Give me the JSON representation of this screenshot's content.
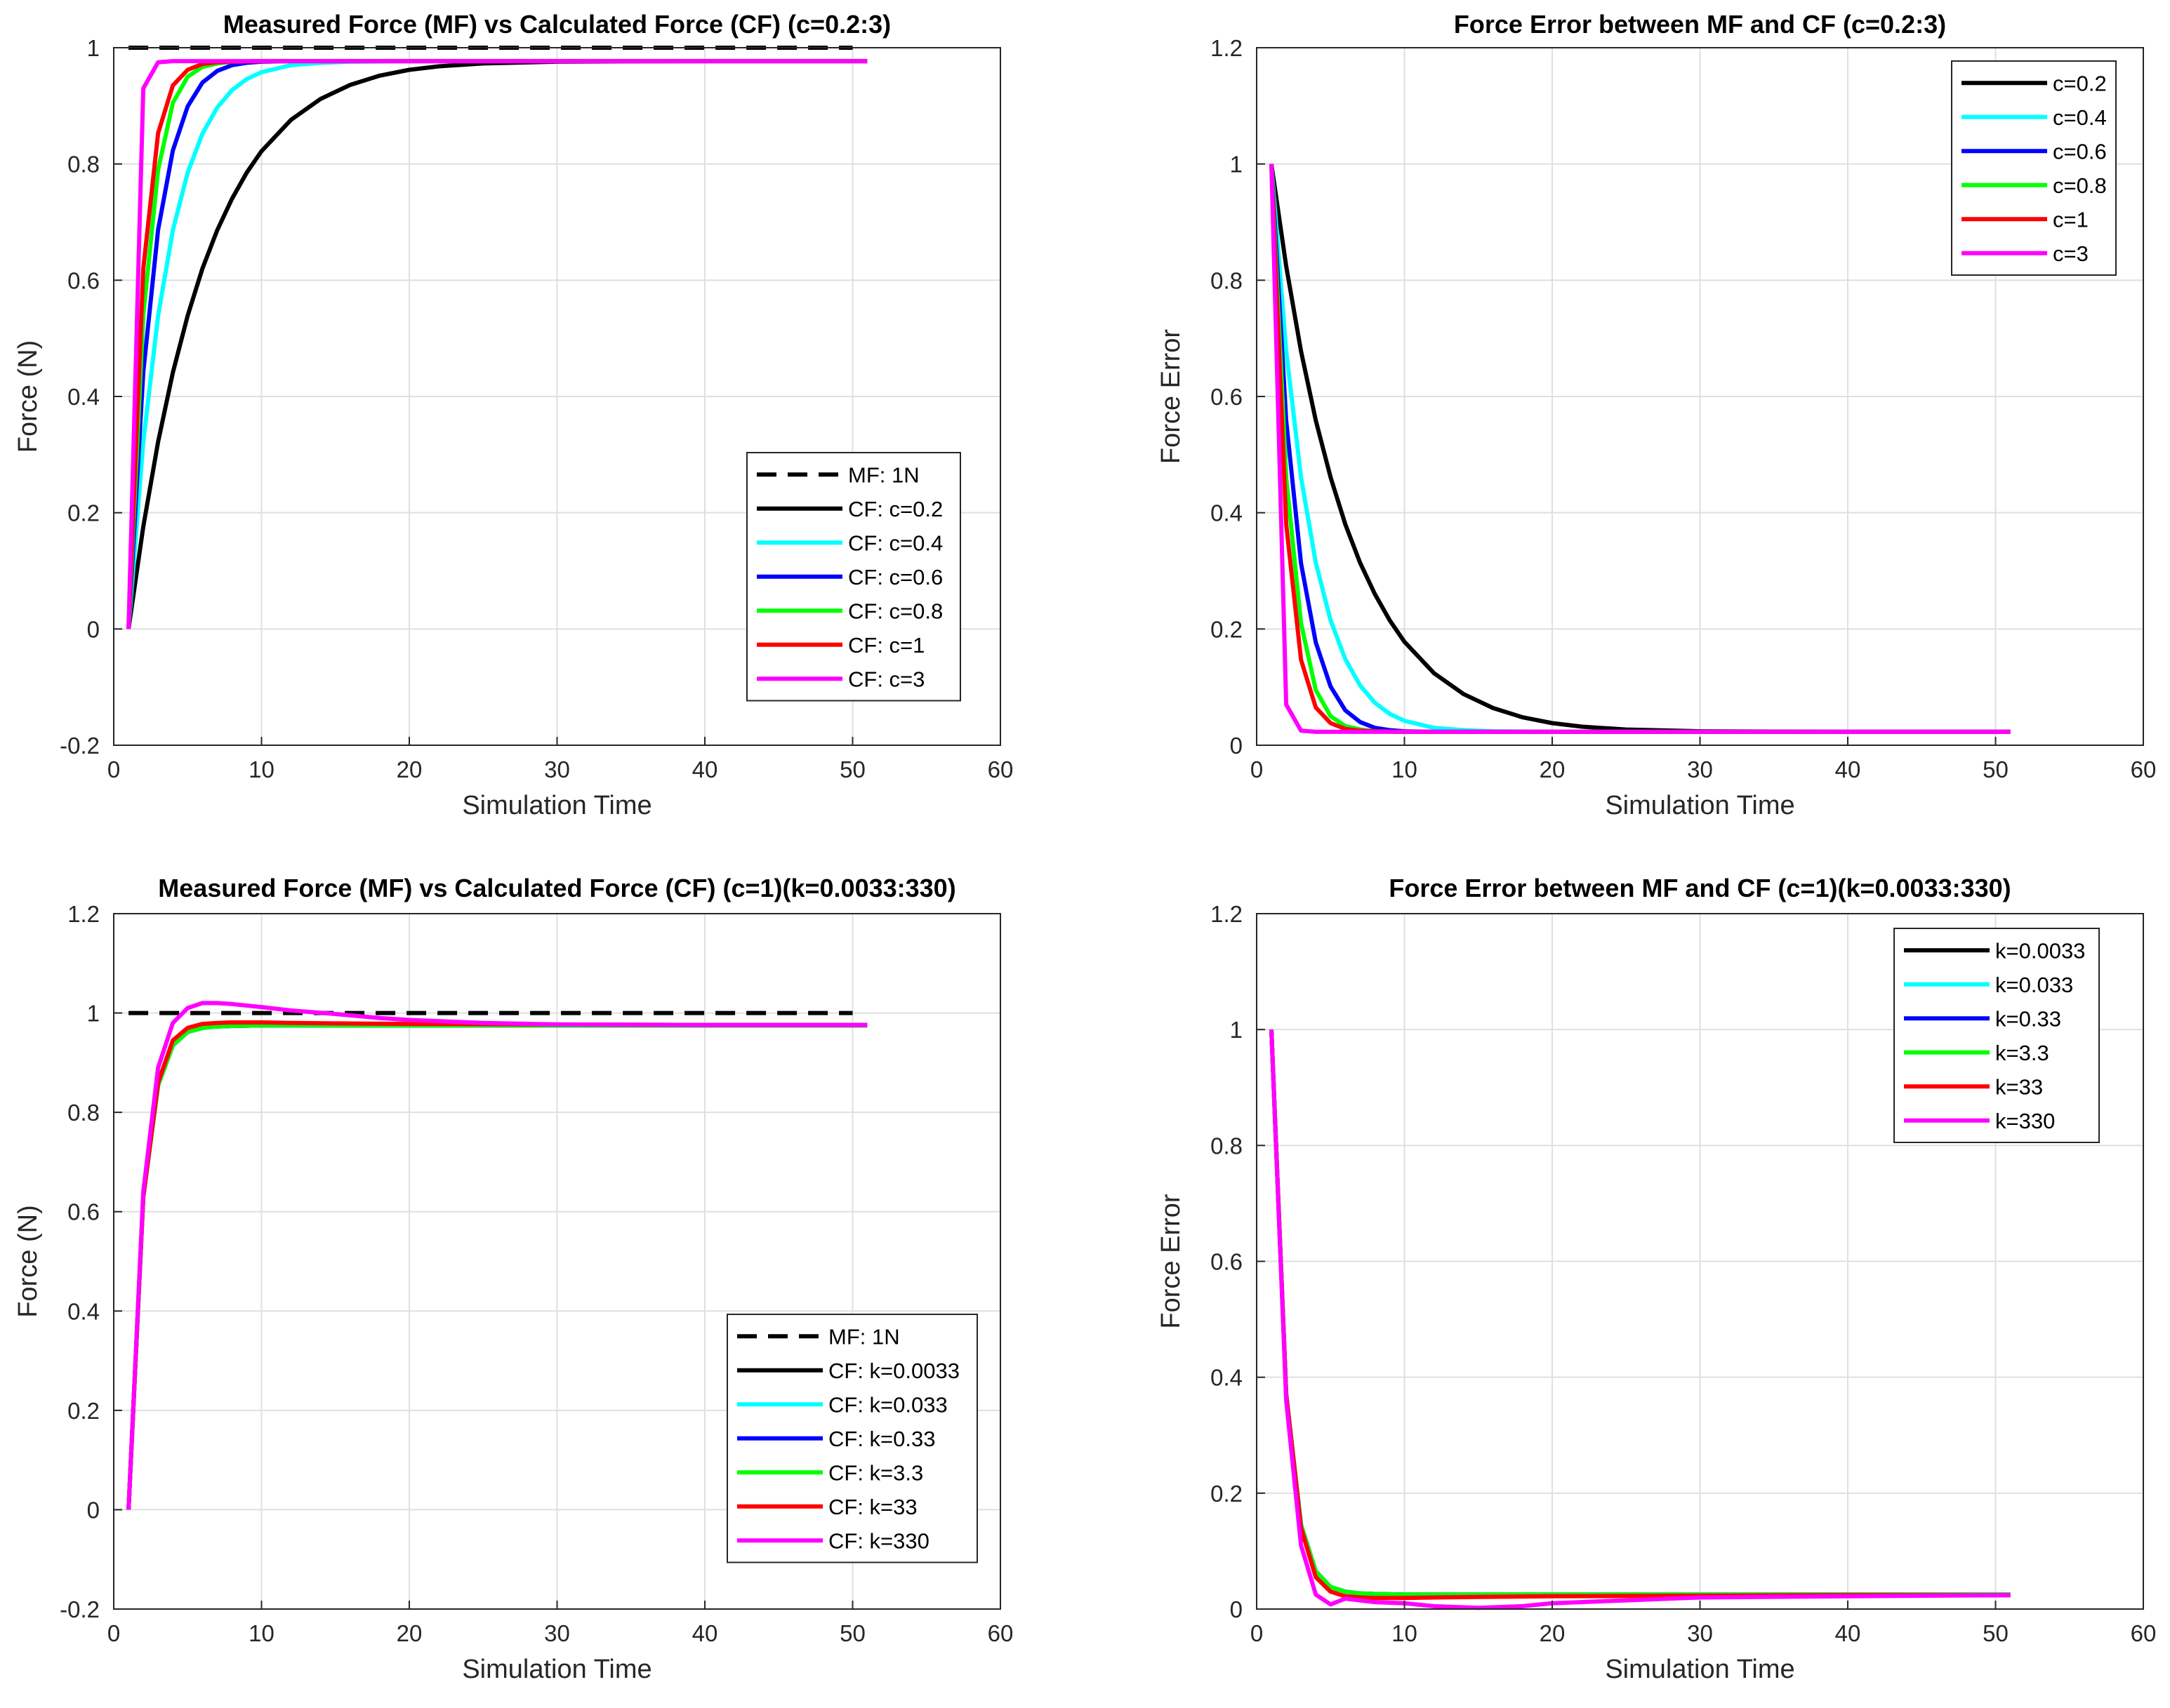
{
  "chart_data": [
    {
      "type": "line",
      "title": "Measured Force (MF) vs Calculated Force (CF) (c=0.2:3)",
      "xlabel": "Simulation Time",
      "ylabel": "Force (N)",
      "xlim": [
        0,
        60
      ],
      "ylim": [
        -0.2,
        1
      ],
      "xticks": [
        0,
        10,
        20,
        30,
        40,
        50,
        60
      ],
      "yticks": [
        -0.2,
        0,
        0.2,
        0.4,
        0.6,
        0.8,
        1
      ],
      "grid": true,
      "legend_position": "middle-right",
      "series": [
        {
          "name": "MF: 1N",
          "color": "#000000",
          "dashed": true,
          "x": [
            1,
            50
          ],
          "y": [
            1,
            1
          ]
        },
        {
          "name": "CF: c=0.2",
          "color": "#000000",
          "x": [
            1,
            2,
            3,
            4,
            5,
            6,
            7,
            8,
            9,
            10,
            12,
            14,
            16,
            18,
            20,
            22,
            25,
            30,
            35,
            40,
            45,
            51
          ],
          "y": [
            0,
            0.176,
            0.322,
            0.441,
            0.539,
            0.62,
            0.686,
            0.74,
            0.785,
            0.822,
            0.876,
            0.912,
            0.936,
            0.952,
            0.962,
            0.968,
            0.973,
            0.976,
            0.9765,
            0.977,
            0.977,
            0.977
          ]
        },
        {
          "name": "CF: c=0.4",
          "color": "#00ffff",
          "x": [
            1,
            2,
            3,
            4,
            5,
            6,
            7,
            8,
            9,
            10,
            12,
            14,
            16,
            20,
            25,
            30,
            40,
            51
          ],
          "y": [
            0,
            0.322,
            0.539,
            0.686,
            0.785,
            0.852,
            0.897,
            0.927,
            0.946,
            0.958,
            0.97,
            0.974,
            0.976,
            0.977,
            0.977,
            0.977,
            0.977,
            0.977
          ]
        },
        {
          "name": "CF: c=0.6",
          "color": "#0000ff",
          "x": [
            1,
            2,
            3,
            4,
            5,
            6,
            7,
            8,
            9,
            10,
            12,
            15,
            20,
            30,
            40,
            51
          ],
          "y": [
            0,
            0.442,
            0.687,
            0.823,
            0.899,
            0.94,
            0.96,
            0.97,
            0.974,
            0.976,
            0.977,
            0.977,
            0.977,
            0.977,
            0.977,
            0.977
          ]
        },
        {
          "name": "CF: c=0.8",
          "color": "#00ff00",
          "x": [
            1,
            2,
            3,
            4,
            5,
            6,
            7,
            8,
            10,
            15,
            20,
            30,
            40,
            51
          ],
          "y": [
            0,
            0.54,
            0.79,
            0.905,
            0.95,
            0.967,
            0.973,
            0.976,
            0.977,
            0.977,
            0.977,
            0.977,
            0.977,
            0.977
          ]
        },
        {
          "name": "CF: c=1",
          "color": "#ff0000",
          "x": [
            1,
            2,
            3,
            4,
            5,
            6,
            7,
            8,
            10,
            15,
            20,
            30,
            40,
            51
          ],
          "y": [
            0,
            0.62,
            0.853,
            0.935,
            0.962,
            0.972,
            0.975,
            0.976,
            0.977,
            0.977,
            0.977,
            0.977,
            0.977,
            0.977
          ]
        },
        {
          "name": "CF: c=3",
          "color": "#ff00ff",
          "x": [
            1,
            2,
            3,
            4,
            5,
            10,
            20,
            30,
            40,
            51
          ],
          "y": [
            0,
            0.93,
            0.975,
            0.977,
            0.977,
            0.977,
            0.977,
            0.977,
            0.977,
            0.977
          ]
        }
      ]
    },
    {
      "type": "line",
      "title": "Force Error between MF and CF (c=0.2:3)",
      "xlabel": "Simulation Time",
      "ylabel": "Force Error",
      "xlim": [
        0,
        60
      ],
      "ylim": [
        0,
        1.2
      ],
      "xticks": [
        0,
        10,
        20,
        30,
        40,
        50,
        60
      ],
      "yticks": [
        0,
        0.2,
        0.4,
        0.6,
        0.8,
        1,
        1.2
      ],
      "grid": true,
      "legend_position": "top-right",
      "series": [
        {
          "name": "c=0.2",
          "color": "#000000",
          "x": [
            1,
            2,
            3,
            4,
            5,
            6,
            7,
            8,
            9,
            10,
            12,
            14,
            16,
            18,
            20,
            22,
            25,
            30,
            35,
            40,
            45,
            51
          ],
          "y": [
            1,
            0.824,
            0.678,
            0.559,
            0.461,
            0.38,
            0.314,
            0.26,
            0.215,
            0.178,
            0.124,
            0.088,
            0.064,
            0.048,
            0.038,
            0.032,
            0.027,
            0.024,
            0.0235,
            0.023,
            0.023,
            0.023
          ]
        },
        {
          "name": "c=0.4",
          "color": "#00ffff",
          "x": [
            1,
            2,
            3,
            4,
            5,
            6,
            7,
            8,
            9,
            10,
            12,
            14,
            16,
            20,
            25,
            30,
            40,
            51
          ],
          "y": [
            1,
            0.678,
            0.461,
            0.314,
            0.215,
            0.148,
            0.103,
            0.073,
            0.054,
            0.042,
            0.03,
            0.026,
            0.024,
            0.023,
            0.023,
            0.023,
            0.023,
            0.023
          ]
        },
        {
          "name": "c=0.6",
          "color": "#0000ff",
          "x": [
            1,
            2,
            3,
            4,
            5,
            6,
            7,
            8,
            9,
            10,
            12,
            15,
            20,
            30,
            40,
            51
          ],
          "y": [
            1,
            0.558,
            0.313,
            0.177,
            0.101,
            0.06,
            0.04,
            0.03,
            0.026,
            0.024,
            0.023,
            0.023,
            0.023,
            0.023,
            0.023,
            0.023
          ]
        },
        {
          "name": "c=0.8",
          "color": "#00ff00",
          "x": [
            1,
            2,
            3,
            4,
            5,
            6,
            7,
            8,
            10,
            15,
            20,
            30,
            40,
            51
          ],
          "y": [
            1,
            0.46,
            0.21,
            0.095,
            0.05,
            0.033,
            0.027,
            0.024,
            0.023,
            0.023,
            0.023,
            0.023,
            0.023,
            0.023
          ]
        },
        {
          "name": "c=1",
          "color": "#ff0000",
          "x": [
            1,
            2,
            3,
            4,
            5,
            6,
            7,
            8,
            10,
            15,
            20,
            30,
            40,
            51
          ],
          "y": [
            1,
            0.38,
            0.147,
            0.065,
            0.038,
            0.028,
            0.025,
            0.024,
            0.023,
            0.023,
            0.023,
            0.023,
            0.023,
            0.023
          ]
        },
        {
          "name": "c=3",
          "color": "#ff00ff",
          "x": [
            1,
            2,
            3,
            4,
            5,
            10,
            20,
            30,
            40,
            51
          ],
          "y": [
            1,
            0.07,
            0.025,
            0.023,
            0.023,
            0.023,
            0.023,
            0.023,
            0.023,
            0.023
          ]
        }
      ]
    },
    {
      "type": "line",
      "title": "Measured Force (MF) vs Calculated Force (CF) (c=1)(k=0.0033:330)",
      "xlabel": "Simulation Time",
      "ylabel": "Force (N)",
      "xlim": [
        0,
        60
      ],
      "ylim": [
        -0.2,
        1.2
      ],
      "xticks": [
        0,
        10,
        20,
        30,
        40,
        50,
        60
      ],
      "yticks": [
        -0.2,
        0,
        0.2,
        0.4,
        0.6,
        0.8,
        1,
        1.2
      ],
      "grid": true,
      "legend_position": "bottom-right",
      "series": [
        {
          "name": "MF: 1N",
          "color": "#000000",
          "dashed": true,
          "x": [
            1,
            50
          ],
          "y": [
            1,
            1
          ]
        },
        {
          "name": "CF: k=0.0033",
          "color": "#000000",
          "x": [
            1,
            2,
            3,
            4,
            5,
            6,
            7,
            8,
            10,
            15,
            20,
            30,
            40,
            51
          ],
          "y": [
            0,
            0.63,
            0.855,
            0.935,
            0.962,
            0.97,
            0.973,
            0.974,
            0.975,
            0.975,
            0.975,
            0.975,
            0.975,
            0.975
          ]
        },
        {
          "name": "CF: k=0.033",
          "color": "#00ffff",
          "x": [
            1,
            2,
            3,
            4,
            5,
            6,
            7,
            8,
            10,
            15,
            20,
            30,
            40,
            51
          ],
          "y": [
            0,
            0.63,
            0.855,
            0.935,
            0.962,
            0.97,
            0.973,
            0.974,
            0.975,
            0.975,
            0.975,
            0.975,
            0.975,
            0.975
          ]
        },
        {
          "name": "CF: k=0.33",
          "color": "#0000ff",
          "x": [
            1,
            2,
            3,
            4,
            5,
            6,
            7,
            8,
            10,
            15,
            20,
            30,
            40,
            51
          ],
          "y": [
            0,
            0.63,
            0.855,
            0.935,
            0.962,
            0.97,
            0.973,
            0.974,
            0.975,
            0.975,
            0.975,
            0.975,
            0.975,
            0.975
          ]
        },
        {
          "name": "CF: k=3.3",
          "color": "#00ff00",
          "x": [
            1,
            2,
            3,
            4,
            5,
            6,
            7,
            8,
            10,
            15,
            20,
            30,
            40,
            51
          ],
          "y": [
            0,
            0.63,
            0.855,
            0.935,
            0.962,
            0.97,
            0.973,
            0.974,
            0.975,
            0.975,
            0.975,
            0.975,
            0.975,
            0.975
          ]
        },
        {
          "name": "CF: k=33",
          "color": "#ff0000",
          "x": [
            1,
            2,
            3,
            4,
            5,
            6,
            7,
            8,
            10,
            12,
            15,
            20,
            30,
            40,
            51
          ],
          "y": [
            0,
            0.63,
            0.86,
            0.945,
            0.97,
            0.978,
            0.98,
            0.981,
            0.981,
            0.98,
            0.979,
            0.978,
            0.977,
            0.976,
            0.976
          ]
        },
        {
          "name": "CF: k=330",
          "color": "#ff00ff",
          "x": [
            1,
            2,
            3,
            4,
            5,
            6,
            7,
            8,
            10,
            12,
            15,
            18,
            20,
            25,
            30,
            40,
            51
          ],
          "y": [
            0,
            0.64,
            0.89,
            0.98,
            1.01,
            1.02,
            1.02,
            1.018,
            1.012,
            1.005,
            0.998,
            0.99,
            0.986,
            0.98,
            0.977,
            0.976,
            0.976
          ]
        }
      ]
    },
    {
      "type": "line",
      "title": "Force Error between MF and CF (c=1)(k=0.0033:330)",
      "xlabel": "Simulation Time",
      "ylabel": "Force Error",
      "xlim": [
        0,
        60
      ],
      "ylim": [
        0,
        1.2
      ],
      "xticks": [
        0,
        10,
        20,
        30,
        40,
        50,
        60
      ],
      "yticks": [
        0,
        0.2,
        0.4,
        0.6,
        0.8,
        1,
        1.2
      ],
      "grid": true,
      "legend_position": "top-right",
      "series": [
        {
          "name": "k=0.0033",
          "color": "#000000",
          "x": [
            1,
            2,
            3,
            4,
            5,
            6,
            7,
            8,
            10,
            15,
            20,
            30,
            40,
            51
          ],
          "y": [
            1,
            0.37,
            0.145,
            0.065,
            0.038,
            0.03,
            0.027,
            0.026,
            0.025,
            0.025,
            0.025,
            0.025,
            0.025,
            0.025
          ]
        },
        {
          "name": "k=0.033",
          "color": "#00ffff",
          "x": [
            1,
            2,
            3,
            4,
            5,
            6,
            7,
            8,
            10,
            15,
            20,
            30,
            40,
            51
          ],
          "y": [
            1,
            0.37,
            0.145,
            0.065,
            0.038,
            0.03,
            0.027,
            0.026,
            0.025,
            0.025,
            0.025,
            0.025,
            0.025,
            0.025
          ]
        },
        {
          "name": "k=0.33",
          "color": "#0000ff",
          "x": [
            1,
            2,
            3,
            4,
            5,
            6,
            7,
            8,
            10,
            15,
            20,
            30,
            40,
            51
          ],
          "y": [
            1,
            0.37,
            0.145,
            0.065,
            0.038,
            0.03,
            0.027,
            0.026,
            0.025,
            0.025,
            0.025,
            0.025,
            0.025,
            0.025
          ]
        },
        {
          "name": "k=3.3",
          "color": "#00ff00",
          "x": [
            1,
            2,
            3,
            4,
            5,
            6,
            7,
            8,
            10,
            15,
            20,
            30,
            40,
            51
          ],
          "y": [
            1,
            0.37,
            0.145,
            0.065,
            0.038,
            0.03,
            0.027,
            0.026,
            0.025,
            0.025,
            0.025,
            0.025,
            0.025,
            0.025
          ]
        },
        {
          "name": "k=33",
          "color": "#ff0000",
          "x": [
            1,
            2,
            3,
            4,
            5,
            6,
            7,
            8,
            10,
            12,
            15,
            20,
            30,
            40,
            51
          ],
          "y": [
            1,
            0.37,
            0.14,
            0.055,
            0.03,
            0.022,
            0.02,
            0.019,
            0.019,
            0.02,
            0.021,
            0.022,
            0.023,
            0.024,
            0.024
          ]
        },
        {
          "name": "k=330",
          "color": "#ff00ff",
          "x": [
            1,
            2,
            3,
            4,
            5,
            6,
            7,
            8,
            10,
            12,
            15,
            18,
            20,
            25,
            30,
            40,
            51
          ],
          "y": [
            1,
            0.36,
            0.11,
            0.025,
            0.008,
            0.018,
            0.015,
            0.012,
            0.01,
            0.005,
            0.002,
            0.005,
            0.01,
            0.015,
            0.02,
            0.022,
            0.024
          ]
        }
      ]
    }
  ]
}
